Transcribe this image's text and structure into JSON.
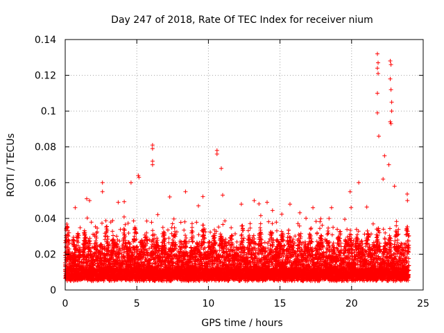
{
  "chart_data": {
    "type": "scatter",
    "title": "Day 247 of 2018, Rate Of TEC Index for receiver nium",
    "xlabel": "GPS time / hours",
    "ylabel": "ROTI / TECUs",
    "xlim": [
      0,
      25
    ],
    "ylim": [
      0,
      0.14
    ],
    "x_ticks": [
      0,
      5,
      10,
      15,
      20,
      25
    ],
    "x_tick_labels": [
      "0",
      "5",
      "10",
      "15",
      "20",
      "25"
    ],
    "y_ticks": [
      0,
      0.02,
      0.04,
      0.06,
      0.08,
      0.1,
      0.12,
      0.14
    ],
    "y_tick_labels": [
      "0",
      "0.02",
      "0.04",
      "0.06",
      "0.08",
      "0.1",
      "0.12",
      "0.14"
    ],
    "grid": true,
    "marker": "+",
    "color": "#ff0000",
    "series": [
      {
        "name": "ROTI",
        "description": "dense band of points between 0.005 and ~0.03 TECU across 0-24 h, with the notable peaks below",
        "notable_points": [
          {
            "x": 21.8,
            "y": 0.132
          },
          {
            "x": 21.85,
            "y": 0.127
          },
          {
            "x": 21.8,
            "y": 0.124
          },
          {
            "x": 21.85,
            "y": 0.121
          },
          {
            "x": 21.8,
            "y": 0.11
          },
          {
            "x": 21.8,
            "y": 0.099
          },
          {
            "x": 21.9,
            "y": 0.086
          },
          {
            "x": 22.7,
            "y": 0.128
          },
          {
            "x": 22.75,
            "y": 0.126
          },
          {
            "x": 22.7,
            "y": 0.118
          },
          {
            "x": 22.75,
            "y": 0.112
          },
          {
            "x": 22.8,
            "y": 0.105
          },
          {
            "x": 22.8,
            "y": 0.1
          },
          {
            "x": 22.7,
            "y": 0.094
          },
          {
            "x": 22.75,
            "y": 0.093
          },
          {
            "x": 6.1,
            "y": 0.081
          },
          {
            "x": 6.1,
            "y": 0.079
          },
          {
            "x": 6.1,
            "y": 0.072
          },
          {
            "x": 6.1,
            "y": 0.07
          },
          {
            "x": 10.6,
            "y": 0.078
          },
          {
            "x": 10.6,
            "y": 0.076
          },
          {
            "x": 10.9,
            "y": 0.068
          },
          {
            "x": 5.1,
            "y": 0.064
          },
          {
            "x": 5.15,
            "y": 0.063
          },
          {
            "x": 4.6,
            "y": 0.06
          },
          {
            "x": 2.6,
            "y": 0.06
          },
          {
            "x": 2.6,
            "y": 0.055
          },
          {
            "x": 8.4,
            "y": 0.055
          },
          {
            "x": 20.5,
            "y": 0.06
          },
          {
            "x": 19.9,
            "y": 0.055
          },
          {
            "x": 22.3,
            "y": 0.075
          },
          {
            "x": 22.6,
            "y": 0.07
          },
          {
            "x": 22.2,
            "y": 0.062
          },
          {
            "x": 23.0,
            "y": 0.058
          },
          {
            "x": 23.9,
            "y": 0.05
          },
          {
            "x": 1.5,
            "y": 0.051
          },
          {
            "x": 1.7,
            "y": 0.05
          },
          {
            "x": 11.0,
            "y": 0.053
          },
          {
            "x": 13.2,
            "y": 0.05
          },
          {
            "x": 15.7,
            "y": 0.048
          },
          {
            "x": 17.3,
            "y": 0.046
          },
          {
            "x": 12.3,
            "y": 0.048
          },
          {
            "x": 0.7,
            "y": 0.046
          },
          {
            "x": 3.7,
            "y": 0.049
          },
          {
            "x": 7.3,
            "y": 0.052
          },
          {
            "x": 9.3,
            "y": 0.047
          },
          {
            "x": 14.1,
            "y": 0.049
          },
          {
            "x": 18.6,
            "y": 0.046
          }
        ]
      }
    ]
  }
}
